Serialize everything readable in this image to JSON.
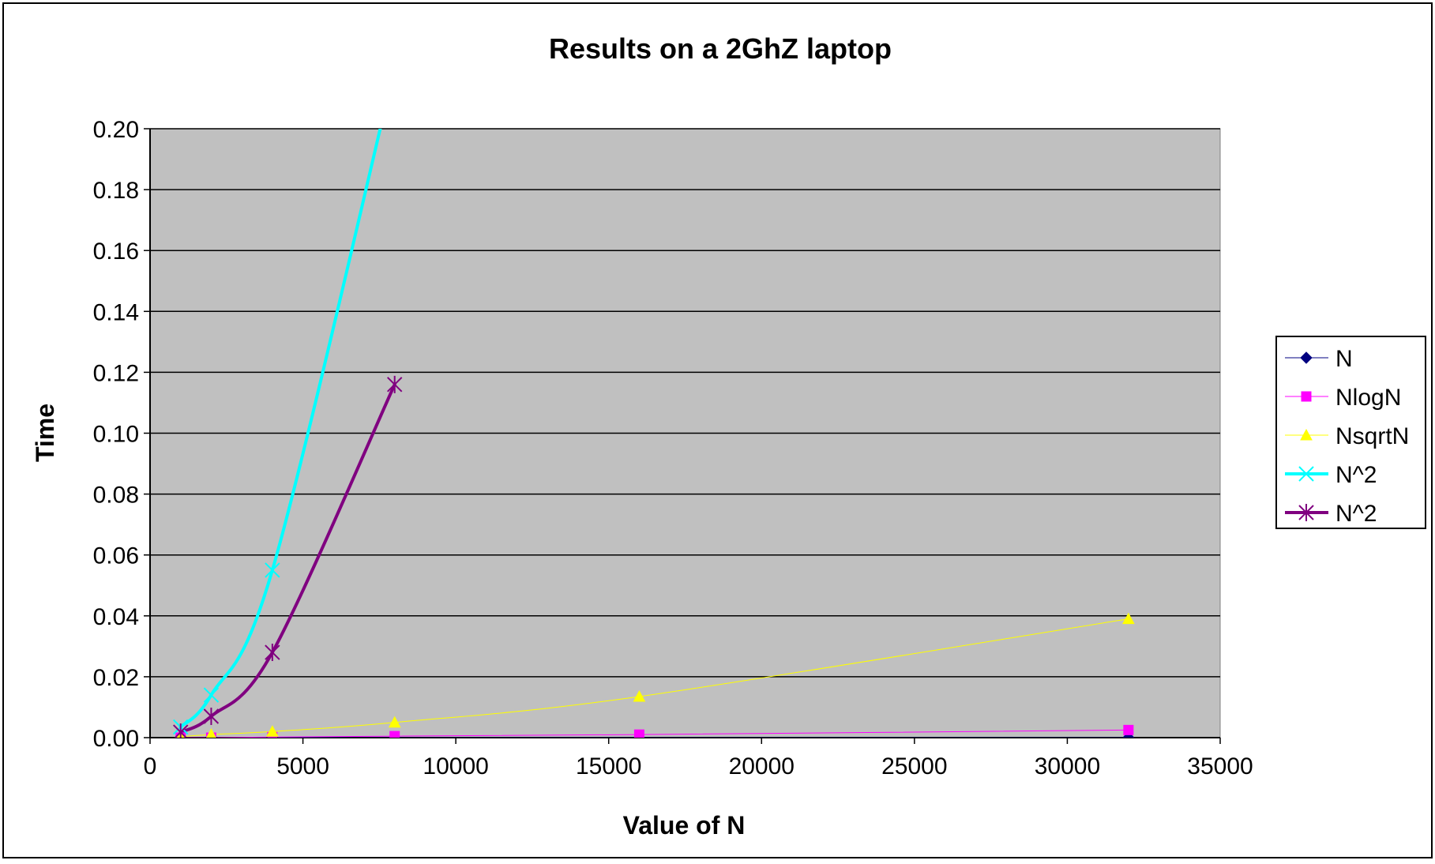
{
  "chart_data": {
    "type": "line",
    "title": "Results on a 2GhZ laptop",
    "xlabel": "Value of N",
    "ylabel": "Time",
    "xlim": [
      0,
      35000
    ],
    "ylim": [
      0,
      0.2
    ],
    "x_ticks": [
      0,
      5000,
      10000,
      15000,
      20000,
      25000,
      30000,
      35000
    ],
    "y_ticks": [
      0.0,
      0.02,
      0.04,
      0.06,
      0.08,
      0.1,
      0.12,
      0.14,
      0.16,
      0.18,
      0.2
    ],
    "y_tick_labels": [
      "0.00",
      "0.02",
      "0.04",
      "0.06",
      "0.08",
      "0.10",
      "0.12",
      "0.14",
      "0.16",
      "0.18",
      "0.20"
    ],
    "grid": "horizontal",
    "legend_position": "right",
    "plot_background": "#C0C0C0",
    "x": [
      1000,
      2000,
      4000,
      8000,
      16000,
      32000
    ],
    "series": [
      {
        "name": "N",
        "color": "#000080",
        "marker": "diamond",
        "line_width": 1,
        "values": [
          0.0,
          0.0,
          0.0,
          0.0,
          0.0,
          0.0
        ]
      },
      {
        "name": "NlogN",
        "color": "#FF00FF",
        "marker": "square",
        "line_width": 1,
        "values": [
          0.0,
          0.0,
          0.0002,
          0.0005,
          0.001,
          0.0025
        ]
      },
      {
        "name": "NsqrtN",
        "color": "#FFFF00",
        "marker": "triangle",
        "line_width": 1,
        "values": [
          0.0003,
          0.001,
          0.002,
          0.005,
          0.0135,
          0.039
        ]
      },
      {
        "name": "N^2",
        "color": "#00FFFF",
        "marker": "x",
        "line_width": 4,
        "values": [
          0.0035,
          0.014,
          0.055,
          0.22,
          null,
          null
        ]
      },
      {
        "name": "N^2",
        "color": "#800080",
        "marker": "star",
        "line_width": 4,
        "values": [
          0.0018,
          0.007,
          0.028,
          0.116,
          null,
          null
        ]
      }
    ]
  }
}
